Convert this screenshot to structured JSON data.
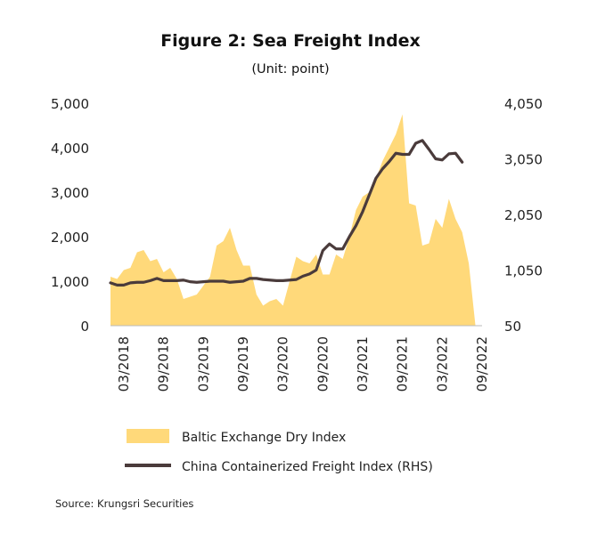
{
  "chart_data": {
    "type": "area+line",
    "title": "Figure 2: Sea Freight Index",
    "subtitle": "(Unit: point)",
    "source": "Source: Krungsri Securities",
    "y_left": {
      "min": 0,
      "max": 5000,
      "ticks": [
        "0",
        "1,000",
        "2,000",
        "3,000",
        "4,000",
        "5,000"
      ]
    },
    "y_right": {
      "min": 50,
      "max": 4050,
      "ticks": [
        "50",
        "1,050",
        "2,050",
        "3,050",
        "4,050"
      ]
    },
    "x_ticks": [
      "03/2018",
      "09/2018",
      "03/2019",
      "09/2019",
      "03/2020",
      "09/2020",
      "03/2021",
      "09/2021",
      "03/2022",
      "09/2022"
    ],
    "x": [
      "01/2018",
      "02/2018",
      "03/2018",
      "04/2018",
      "05/2018",
      "06/2018",
      "07/2018",
      "08/2018",
      "09/2018",
      "10/2018",
      "11/2018",
      "12/2018",
      "01/2019",
      "02/2019",
      "03/2019",
      "04/2019",
      "05/2019",
      "06/2019",
      "07/2019",
      "08/2019",
      "09/2019",
      "10/2019",
      "11/2019",
      "12/2019",
      "01/2020",
      "02/2020",
      "03/2020",
      "04/2020",
      "05/2020",
      "06/2020",
      "07/2020",
      "08/2020",
      "09/2020",
      "10/2020",
      "11/2020",
      "12/2020",
      "01/2021",
      "02/2021",
      "03/2021",
      "04/2021",
      "05/2021",
      "06/2021",
      "07/2021",
      "08/2021",
      "09/2021",
      "10/2021",
      "11/2021",
      "12/2021",
      "01/2022",
      "02/2022",
      "03/2022",
      "04/2022",
      "05/2022",
      "06/2022",
      "07/2022",
      "08/2022",
      "09/2022"
    ],
    "series": [
      {
        "name": "Baltic Exchange Dry Index",
        "type": "area",
        "axis": "left",
        "color": "#FFD97A",
        "values": [
          1100,
          1050,
          1250,
          1300,
          1650,
          1700,
          1450,
          1500,
          1200,
          1300,
          1050,
          600,
          650,
          700,
          900,
          1100,
          1800,
          1900,
          2200,
          1700,
          1350,
          1350,
          700,
          450,
          550,
          600,
          450,
          1000,
          1550,
          1450,
          1400,
          1600,
          1150,
          1150,
          1600,
          1500,
          2000,
          2600,
          2900,
          3000,
          3300,
          3700,
          4000,
          4300,
          4750,
          2750,
          2700,
          1800,
          1850,
          2400,
          2200,
          2850,
          2400,
          2100,
          1400,
          0,
          0
        ]
      },
      {
        "name": "China Containerized Freight Index (RHS)",
        "type": "line",
        "axis": "right",
        "color": "#4A3B3B",
        "values": [
          820,
          780,
          780,
          820,
          830,
          830,
          860,
          900,
          860,
          860,
          860,
          870,
          840,
          830,
          840,
          850,
          850,
          850,
          830,
          840,
          850,
          900,
          900,
          880,
          870,
          860,
          860,
          870,
          880,
          940,
          980,
          1050,
          1400,
          1520,
          1430,
          1430,
          1650,
          1850,
          2100,
          2400,
          2700,
          2870,
          3000,
          3150,
          3130,
          3130,
          3330,
          3380,
          3220,
          3050,
          3030,
          3140,
          3150,
          2990,
          null,
          null,
          null
        ]
      }
    ]
  }
}
